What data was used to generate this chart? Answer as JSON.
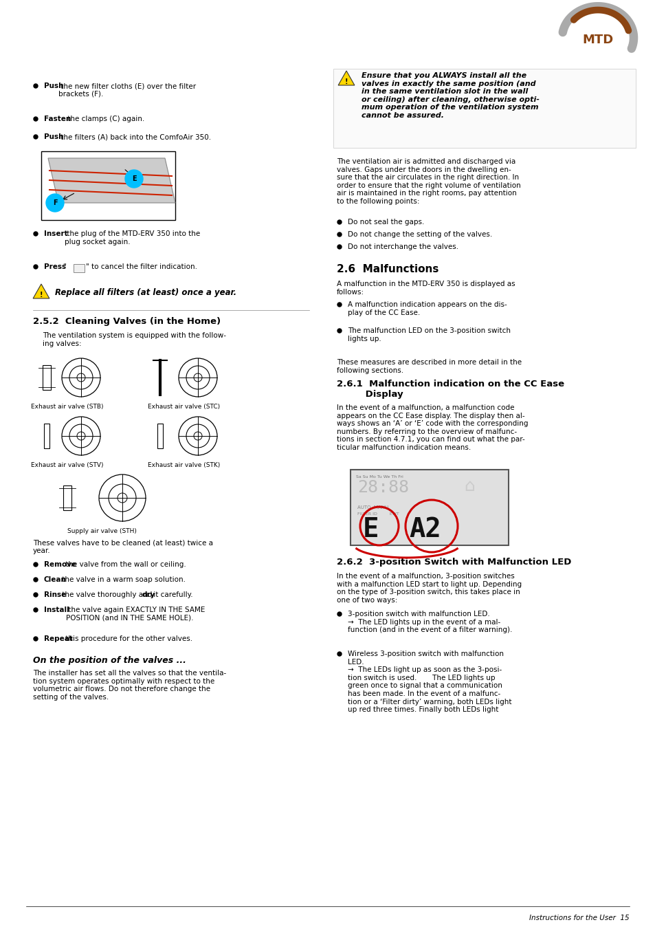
{
  "page_bg": "#ffffff",
  "logo_text": "MTD",
  "colors": {
    "text": "#000000",
    "gray_text": "#555555",
    "heading_color": "#000000",
    "warning_yellow": "#FFD700",
    "logo_brown": "#8B4513",
    "logo_gray": "#999999",
    "red_circle": "#CC0000",
    "blue_circle": "#00BFFF",
    "display_bg": "#E8E8E8"
  },
  "left_bullets_top": [
    [
      "Push",
      " the new filter cloths (E) over the filter\nbrackets (F)."
    ],
    [
      "Fasten",
      " the clamps (C) again."
    ],
    [
      "Push",
      " the filters (A) back into the ComfoAir 350."
    ]
  ],
  "left_bullets_insert": [
    [
      "Insert",
      " the plug of the MTD-ERV 350 into the\nplug socket again."
    ],
    [
      "Press",
      " “  ” to cancel the filter indication."
    ]
  ],
  "warning_replace": "Replace all filters (at least) once a year.",
  "sec252_title": "2.5.2  Cleaning Valves (in the Home)",
  "sec252_body": "The ventilation system is equipped with the follow-\ning valves:",
  "valve_labels": [
    "Exhaust air valve (STB)",
    "Exhaust air valve (STC)",
    "Exhaust air valve (STV)",
    "Exhaust air valve (STK)",
    "Supply air valve (STH)"
  ],
  "cleaning_text": "These valves have to be cleaned (at least) twice a\nyear.",
  "cleaning_bullets": [
    [
      [
        "Remove",
        true
      ],
      [
        " the valve from the wall or ceiling.",
        false
      ]
    ],
    [
      [
        "Clean",
        true
      ],
      [
        " the valve in a warm soap solution.",
        false
      ]
    ],
    [
      [
        "Rinse",
        true
      ],
      [
        " the valve thoroughly and ",
        false
      ],
      [
        "dry",
        true
      ],
      [
        " it carefully.",
        false
      ]
    ],
    [
      [
        "Install",
        true
      ],
      [
        " the valve again EXACTLY IN THE SAME\nPOSITION (and IN THE SAME HOLE).",
        false
      ]
    ],
    [
      [
        "Repeat",
        true
      ],
      [
        " this procedure for the other valves.",
        false
      ]
    ]
  ],
  "italic_title": "On the position of the valves ...",
  "italic_body": "The installer has set all the valves so that the ventila-\ntion system operates optimally with respect to the\nvolumetric air flows. Do not therefore change the\nsetting of the valves.",
  "right_warning": "Ensure that you ALWAYS install all the\nvalves in exactly the same position (and\nin the same ventilation slot in the wall\nor ceiling) after cleaning, otherwise opti-\nmum operation of the ventilation system\ncannot be assured.",
  "right_body1": "The ventilation air is admitted and discharged via\nvalves. Gaps under the doors in the dwelling en-\nsure that the air circulates in the right direction. In\norder to ensure that the right volume of ventilation\nair is maintained in the right rooms, pay attention\nto the following points:",
  "right_bullets1": [
    "Do not seal the gaps.",
    "Do not change the setting of the valves.",
    "Do not interchange the valves."
  ],
  "sec26_title": "2.6  Malfunctions",
  "sec26_body": "A malfunction in the MTD-ERV 350 is displayed as\nfollows:",
  "sec26_bullets": [
    "A malfunction indication appears on the dis-\nplay of the CC Ease.",
    "The malfunction LED on the 3-position switch\nlights up."
  ],
  "measures_text": "These measures are described in more detail in the\nfollowing sections.",
  "sec261_title": "2.6.1  Malfunction indication on the CC Ease\n         Display",
  "sec261_body": "In the event of a malfunction, a malfunction code\nappears on the CC Ease display. The display then al-\nways shows an ‘A’ or ‘E’ code with the corresponding\nnumbers. By referring to the overview of malfunc-\ntions in section 4.7.1, you can find out what the par-\nticular malfunction indication means.",
  "sec262_title": "2.6.2  3-position Switch with Malfunction LED",
  "sec262_body": "In the event of a malfunction, 3-position switches\nwith a malfunction LED start to light up. Depending\non the type of 3-position switch, this takes place in\none of two ways:",
  "sec262_bullets": [
    "3-position switch with malfunction LED.\n→  The LED lights up in the event of a mal-\nfunction (and in the event of a filter warning).",
    "Wireless 3-position switch with malfunction\nLED.\n→  The LEDs light up as soon as the 3-posi-\ntion switch is used.       The LED lights up\ngreen once to signal that a communication\nhas been made. In the event of a malfunc-\ntion or a ‘Filter dirty’ warning, both LEDs light\nup red three times. Finally both LEDs light"
  ],
  "footer_text": "Instructions for the User  15"
}
